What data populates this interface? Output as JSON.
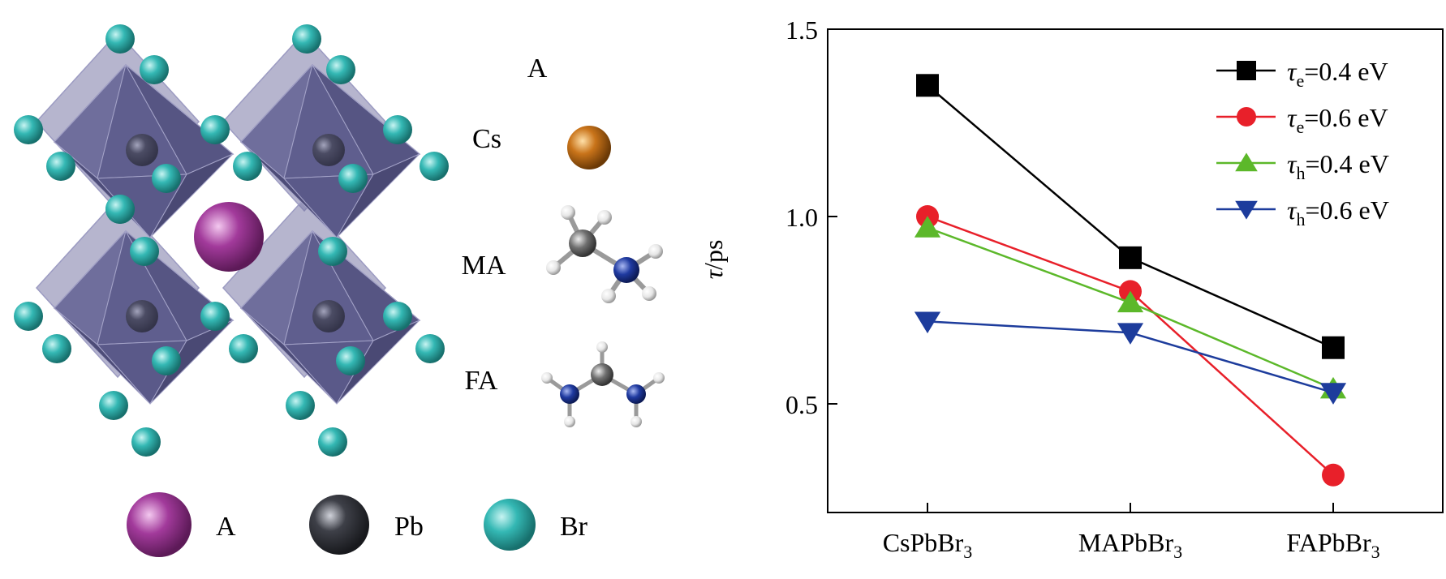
{
  "structure": {
    "a_header": "A",
    "cations": [
      {
        "label": "Cs"
      },
      {
        "label": "MA"
      },
      {
        "label": "FA"
      }
    ],
    "legend": [
      {
        "label": "A",
        "color": "#a23a9b"
      },
      {
        "label": "Pb",
        "color": "#3e4048"
      },
      {
        "label": "Br",
        "color": "#34b8b4"
      }
    ],
    "colors": {
      "octahedron": "#5b5a8a",
      "octahedron_light": "#7a79a6",
      "cs_atom": "#c9741a",
      "carbon": "#707070",
      "nitrogen": "#1f3aa0",
      "hydrogen": "#f2f2f2"
    }
  },
  "chart_data": {
    "type": "line",
    "categories": [
      "CsPbBr",
      "MAPbBr",
      "FAPbBr"
    ],
    "category_subscript": "3",
    "ylabel_symbol": "τ",
    "ylabel_unit": "/ps",
    "ylim": [
      0.21,
      1.5
    ],
    "yticks": [
      0.5,
      1.0,
      1.5
    ],
    "ytick_labels": [
      "0.5",
      "1.0",
      "1.5"
    ],
    "grid": false,
    "legend_position": "top-right",
    "series": [
      {
        "name": "τe=0.4 eV",
        "symbol": "τ",
        "subscript": "e",
        "value_text": "=0.4 eV",
        "color": "#000000",
        "marker": "square",
        "values": [
          1.35,
          0.89,
          0.65
        ]
      },
      {
        "name": "τe=0.6 eV",
        "symbol": "τ",
        "subscript": "e",
        "value_text": "=0.6 eV",
        "color": "#e8202a",
        "marker": "circle",
        "values": [
          1.0,
          0.8,
          0.31
        ]
      },
      {
        "name": "τh=0.4 eV",
        "symbol": "τ",
        "subscript": "h",
        "value_text": "=0.4 eV",
        "color": "#5cb82a",
        "marker": "triangle-up",
        "values": [
          0.97,
          0.77,
          0.54
        ]
      },
      {
        "name": "τh=0.6 eV",
        "symbol": "τ",
        "subscript": "h",
        "value_text": "=0.6 eV",
        "color": "#1d3c9c",
        "marker": "triangle-down",
        "values": [
          0.72,
          0.69,
          0.53
        ]
      }
    ]
  }
}
